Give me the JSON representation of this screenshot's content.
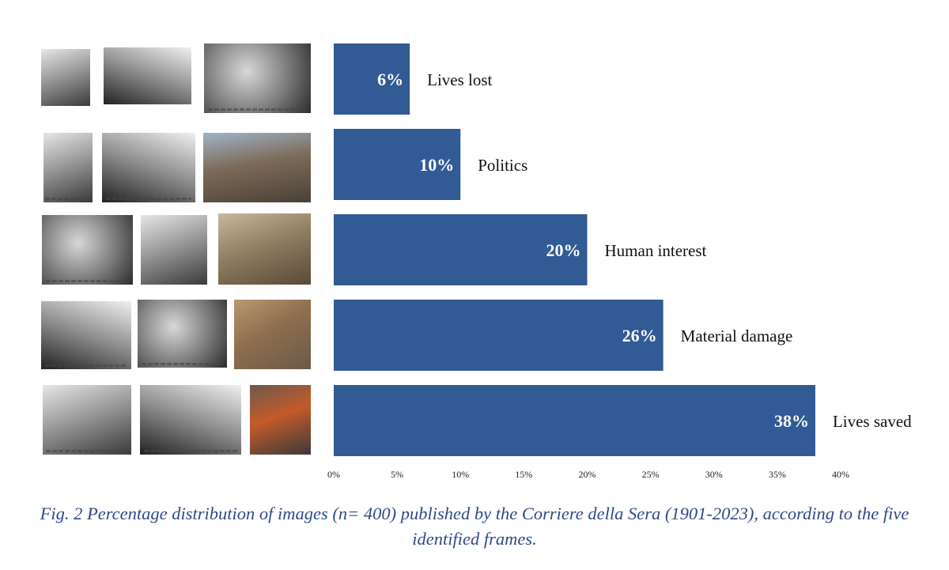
{
  "chart_data": {
    "type": "bar",
    "orientation": "horizontal",
    "categories": [
      "Lives lost",
      "Politics",
      "Human interest",
      "Material damage",
      "Lives saved"
    ],
    "values": [
      6,
      10,
      20,
      26,
      38
    ],
    "value_labels": [
      "6%",
      "10%",
      "20%",
      "26%",
      "38%"
    ],
    "xlim": [
      0,
      40
    ],
    "xticks": [
      "0%",
      "5%",
      "10%",
      "15%",
      "20%",
      "25%",
      "30%",
      "35%",
      "40%"
    ],
    "title": "",
    "xlabel": "",
    "ylabel": "",
    "bar_color": "#325a94",
    "value_label_color": "#ffffff",
    "grid": false,
    "legend": "none"
  },
  "caption": {
    "text": "Fig. 2 Percentage distribution of images (n= 400) published by the Corriere della Sera (1901-2023), according to the five identified frames.",
    "color": "#2e4a8a"
  },
  "photos": {
    "count_per_row": 3,
    "rows": 5,
    "description_note": ""
  }
}
